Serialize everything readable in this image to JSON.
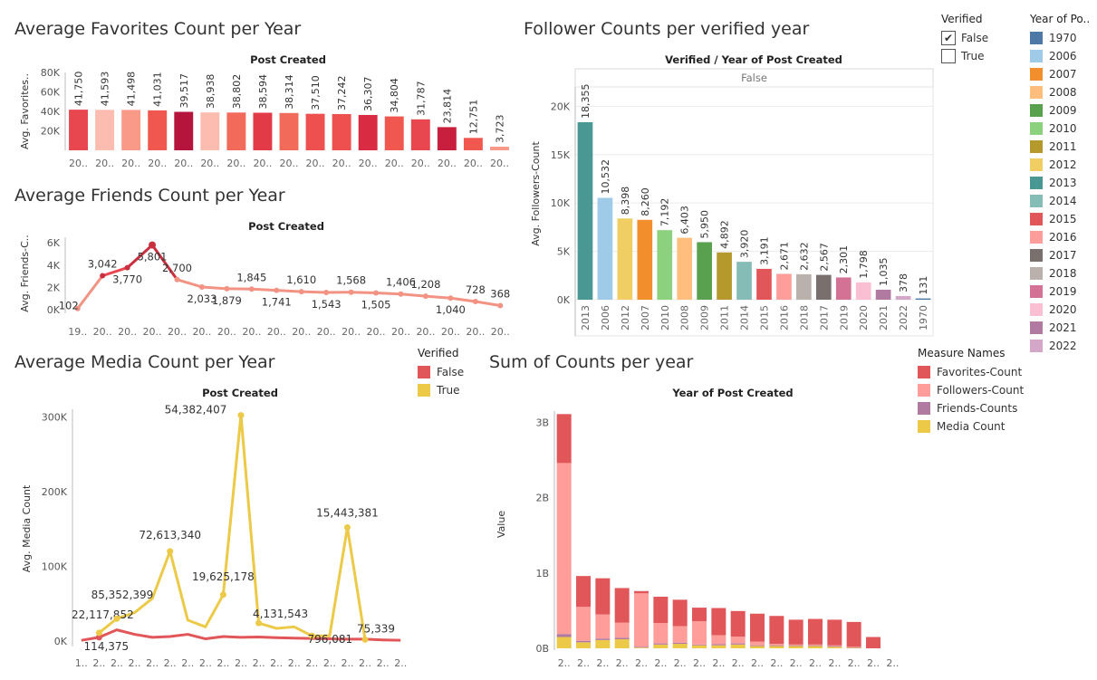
{
  "titles": {
    "fav": "Average Favorites Count per Year",
    "friends": "Average Friends Count per Year",
    "media": "Average Media Count per Year",
    "followers": "Follower Counts per verified year",
    "sum": "Sum of Counts per year"
  },
  "verified_filter": {
    "title": "Verified",
    "options": [
      {
        "label": "False",
        "checked": true,
        "mark": "✔"
      },
      {
        "label": "True",
        "checked": false,
        "mark": ""
      }
    ]
  },
  "year_legend": {
    "title": "Year of Po..",
    "items": [
      {
        "label": "1970",
        "color": "#4e79a7"
      },
      {
        "label": "2006",
        "color": "#a0cbe8"
      },
      {
        "label": "2007",
        "color": "#f28e2b"
      },
      {
        "label": "2008",
        "color": "#ffbe7d"
      },
      {
        "label": "2009",
        "color": "#59a14f"
      },
      {
        "label": "2010",
        "color": "#8cd17d"
      },
      {
        "label": "2011",
        "color": "#b6992d"
      },
      {
        "label": "2012",
        "color": "#f1ce63"
      },
      {
        "label": "2013",
        "color": "#499894"
      },
      {
        "label": "2014",
        "color": "#86bcb6"
      },
      {
        "label": "2015",
        "color": "#e15759"
      },
      {
        "label": "2016",
        "color": "#ff9d9a"
      },
      {
        "label": "2017",
        "color": "#79706e"
      },
      {
        "label": "2018",
        "color": "#bab0ac"
      },
      {
        "label": "2019",
        "color": "#d37295"
      },
      {
        "label": "2020",
        "color": "#fabfd2"
      },
      {
        "label": "2021",
        "color": "#b07aa1"
      },
      {
        "label": "2022",
        "color": "#d4a6c8"
      }
    ]
  },
  "media_legend": {
    "title": "Verified",
    "items": [
      {
        "label": "False",
        "color": "#e15759"
      },
      {
        "label": "True",
        "color": "#edc948"
      }
    ]
  },
  "measure_legend": {
    "title": "Measure Names",
    "items": [
      {
        "label": "Favorites-Count",
        "color": "#e15759"
      },
      {
        "label": "Followers-Count",
        "color": "#ff9d9a"
      },
      {
        "label": "Friends-Counts",
        "color": "#b07aa1"
      },
      {
        "label": "Media Count",
        "color": "#edc948"
      }
    ]
  },
  "chart_data": [
    {
      "id": "fav",
      "type": "bar",
      "header": "Post Created",
      "ylabel": "Avg. Favorites..",
      "ylim": [
        0,
        80000
      ],
      "yticks": [
        20000,
        40000,
        60000,
        80000
      ],
      "ytick_labels": [
        "20K",
        "40K",
        "60K",
        "80K"
      ],
      "categories": [
        "20..",
        "20..",
        "20..",
        "20..",
        "20..",
        "20..",
        "20..",
        "20..",
        "20..",
        "20..",
        "20..",
        "20..",
        "20..",
        "20..",
        "20..",
        "20..",
        "20.."
      ],
      "values": [
        41750,
        41593,
        41498,
        41031,
        39517,
        38938,
        38802,
        38594,
        38314,
        37510,
        37242,
        36307,
        34804,
        31787,
        23814,
        12751,
        3723
      ],
      "value_labels": [
        "41,750",
        "41,593",
        "41,498",
        "41,031",
        "39,517",
        "38,938",
        "38,802",
        "38,594",
        "38,314",
        "37,510",
        "37,242",
        "36,307",
        "34,804",
        "31,787",
        "23,814",
        "12,751",
        "3,723"
      ],
      "colors": [
        "#e8474f",
        "#fdbcb0",
        "#f99a88",
        "#f0574f",
        "#b5143d",
        "#fdbcb0",
        "#f26b5a",
        "#e23a46",
        "#f26b5a",
        "#ee5050",
        "#ee5050",
        "#d92b41",
        "#f0574f",
        "#e8474f",
        "#c91f3e",
        "#f0574f",
        "#f99a88"
      ]
    },
    {
      "id": "friends",
      "type": "line",
      "header": "Post Created",
      "ylabel": "Avg. Friends-C..",
      "ylim": [
        0,
        6500
      ],
      "yticks": [
        0,
        2000,
        4000,
        6000
      ],
      "ytick_labels": [
        "0K",
        "2K",
        "4K",
        "6K"
      ],
      "categories": [
        "19..",
        "20..",
        "20..",
        "20..",
        "20..",
        "20..",
        "20..",
        "20..",
        "20..",
        "20..",
        "20..",
        "20..",
        "20..",
        "20..",
        "20..",
        "20..",
        "20..",
        "20.."
      ],
      "values": [
        102,
        3042,
        3770,
        5801,
        2700,
        2033,
        1879,
        1845,
        1741,
        1610,
        1543,
        1568,
        1505,
        1406,
        1208,
        1040,
        728,
        368
      ],
      "value_labels": [
        "102",
        "3,042",
        "3,770",
        "5,801",
        "2,700",
        "2,033",
        "1,879",
        "1,845",
        "1,741",
        "1,610",
        "1,543",
        "1,568",
        "1,505",
        "1,406",
        "1,208",
        "1,040",
        "728",
        "368"
      ],
      "label_above": [
        false,
        true,
        false,
        false,
        true,
        false,
        false,
        true,
        false,
        true,
        false,
        true,
        false,
        true,
        true,
        false,
        true,
        true
      ]
    },
    {
      "id": "media",
      "type": "line",
      "header": "Post Created",
      "ylabel": "Avg. Media Count",
      "ylim": [
        0,
        310000
      ],
      "yticks": [
        0,
        100000,
        200000,
        300000
      ],
      "ytick_labels": [
        "0K",
        "100K",
        "200K",
        "300K"
      ],
      "categories": [
        "1..",
        "2..",
        "2..",
        "2..",
        "2..",
        "2..",
        "2..",
        "2..",
        "2..",
        "2..",
        "2..",
        "2..",
        "2..",
        "2..",
        "2..",
        "2..",
        "2..",
        "2..",
        "2.."
      ],
      "series": [
        {
          "name": "False",
          "color": "#e15759",
          "values": [
            1000,
            5000,
            15000,
            9000,
            5000,
            6000,
            9000,
            3000,
            6000,
            5000,
            5500,
            4500,
            4000,
            3500,
            3000,
            2500,
            2500,
            1500,
            1000
          ]
        },
        {
          "name": "True",
          "color": "#edc948",
          "values": [
            null,
            11000,
            30000,
            38000,
            57000,
            120000,
            28000,
            19000,
            62000,
            302000,
            24000,
            17000,
            19000,
            7000,
            7000,
            152000,
            2000,
            null,
            null
          ]
        }
      ],
      "labels": [
        {
          "text": "114,375",
          "series": 0,
          "index": 1,
          "dx": 8,
          "dy": 14
        },
        {
          "text": "22,117,852",
          "series": 1,
          "index": 1,
          "dx": 4,
          "dy": -16
        },
        {
          "text": "85,352,399",
          "series": 1,
          "index": 2,
          "dx": 6,
          "dy": -22
        },
        {
          "text": "72,613,340",
          "series": 1,
          "index": 5,
          "dx": 0,
          "dy": -14
        },
        {
          "text": "19,625,178",
          "series": 1,
          "index": 8,
          "dx": 0,
          "dy": -16
        },
        {
          "text": "54,382,407",
          "series": 1,
          "index": 9,
          "dx": -50,
          "dy": -2
        },
        {
          "text": "4,131,543",
          "series": 1,
          "index": 10,
          "dx": 24,
          "dy": -6
        },
        {
          "text": "796,081",
          "series": 1,
          "index": 13,
          "dx": 20,
          "dy": 8
        },
        {
          "text": "15,443,381",
          "series": 1,
          "index": 15,
          "dx": 0,
          "dy": -12
        },
        {
          "text": "75,339",
          "series": 1,
          "index": 16,
          "dx": 12,
          "dy": -8
        }
      ]
    },
    {
      "id": "followers",
      "type": "bar",
      "header": "Verified  /  Year of Post Created",
      "panel_label": "False",
      "ylabel": "Avg. Followers-Count",
      "ylim": [
        0,
        22000
      ],
      "yticks": [
        0,
        5000,
        10000,
        15000,
        20000
      ],
      "ytick_labels": [
        "0K",
        "5K",
        "10K",
        "15K",
        "20K"
      ],
      "categories": [
        "2013",
        "2006",
        "2012",
        "2007",
        "2010",
        "2008",
        "2009",
        "2011",
        "2014",
        "2015",
        "2016",
        "2018",
        "2017",
        "2019",
        "2020",
        "2021",
        "2022",
        "1970"
      ],
      "values": [
        18355,
        10532,
        8398,
        8260,
        7192,
        6403,
        5950,
        4892,
        3920,
        3191,
        2671,
        2632,
        2567,
        2301,
        1798,
        1035,
        378,
        131
      ],
      "value_labels": [
        "18,355",
        "10,532",
        "8,398",
        "8,260",
        "7,192",
        "6,403",
        "5,950",
        "4,892",
        "3,920",
        "3,191",
        "2,671",
        "2,632",
        "2,567",
        "2,301",
        "1,798",
        "1,035",
        "378",
        "131"
      ]
    },
    {
      "id": "sum",
      "type": "bar",
      "stacked": true,
      "header": "Year of Post Created",
      "ylabel": "Value",
      "ylim": [
        0,
        3150000000
      ],
      "yticks": [
        0,
        1000000000,
        2000000000,
        3000000000
      ],
      "ytick_labels": [
        "0B",
        "1B",
        "2B",
        "3B"
      ],
      "categories": [
        "2..",
        "2..",
        "2..",
        "2..",
        "2..",
        "2..",
        "2..",
        "2..",
        "2..",
        "2..",
        "2..",
        "2..",
        "2..",
        "2..",
        "2..",
        "2..",
        "2..",
        "2.."
      ],
      "series": [
        {
          "name": "Media Count",
          "color": "#edc948",
          "values": [
            150000000,
            80000000,
            110000000,
            120000000,
            10000000,
            50000000,
            60000000,
            40000000,
            40000000,
            50000000,
            30000000,
            30000000,
            30000000,
            30000000,
            20000000,
            10000000,
            0,
            0
          ]
        },
        {
          "name": "Friends-Counts",
          "color": "#b07aa1",
          "values": [
            40000000,
            20000000,
            20000000,
            20000000,
            10000000,
            15000000,
            15000000,
            10000000,
            15000000,
            15000000,
            10000000,
            10000000,
            10000000,
            10000000,
            10000000,
            5000000,
            0,
            0
          ]
        },
        {
          "name": "Followers-Count",
          "color": "#ff9d9a",
          "values": [
            2270000000,
            450000000,
            320000000,
            200000000,
            710000000,
            270000000,
            220000000,
            310000000,
            120000000,
            90000000,
            50000000,
            20000000,
            10000000,
            10000000,
            10000000,
            5000000,
            0,
            0
          ]
        },
        {
          "name": "Favorites-Count",
          "color": "#e15759",
          "values": [
            650000000,
            410000000,
            480000000,
            460000000,
            30000000,
            350000000,
            350000000,
            180000000,
            360000000,
            340000000,
            370000000,
            370000000,
            330000000,
            340000000,
            340000000,
            330000000,
            150000000,
            0
          ]
        }
      ]
    }
  ]
}
